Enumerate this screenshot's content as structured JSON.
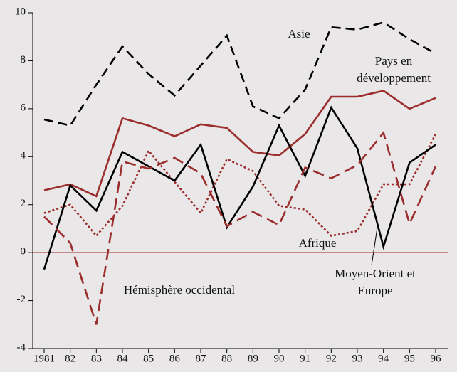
{
  "chart_data": {
    "type": "line",
    "categories": [
      "1981",
      "82",
      "83",
      "84",
      "85",
      "86",
      "87",
      "88",
      "89",
      "90",
      "91",
      "92",
      "93",
      "94",
      "95",
      "96"
    ],
    "series": [
      {
        "name": "Asie",
        "color": "#000000",
        "style": "dashed",
        "values": [
          5.55,
          5.3,
          7.0,
          8.6,
          7.45,
          6.55,
          7.8,
          9.05,
          6.1,
          5.6,
          6.8,
          9.4,
          9.3,
          9.6,
          8.9,
          8.3
        ]
      },
      {
        "name": "Pays en développement",
        "color": "#9b2d2d",
        "style": "solid",
        "values": [
          2.6,
          2.85,
          2.35,
          5.6,
          5.3,
          4.85,
          5.35,
          5.2,
          4.2,
          4.05,
          4.95,
          6.5,
          6.5,
          6.75,
          6.0,
          6.45
        ]
      },
      {
        "name": "Afrique",
        "color": "#9b2d2d",
        "style": "dotted",
        "values": [
          1.65,
          2.0,
          0.7,
          1.95,
          4.25,
          2.95,
          1.65,
          3.9,
          3.4,
          1.95,
          1.8,
          0.7,
          0.9,
          2.85,
          2.85,
          4.95
        ]
      },
      {
        "name": "Moyen-Orient et Europe",
        "color": "#000000",
        "style": "solid",
        "values": [
          -0.7,
          2.8,
          1.75,
          4.2,
          3.6,
          3.0,
          4.5,
          1.05,
          2.75,
          5.3,
          3.2,
          6.05,
          4.35,
          0.25,
          3.75,
          4.5
        ]
      },
      {
        "name": "Hémisphère occidental",
        "color": "#9b2d2d",
        "style": "long-dashed",
        "values": [
          1.5,
          0.4,
          -3.0,
          3.8,
          3.5,
          3.95,
          3.3,
          1.1,
          1.7,
          1.15,
          3.55,
          3.1,
          3.65,
          5.0,
          1.2,
          3.6
        ]
      }
    ],
    "ylim": [
      -4,
      10
    ],
    "yticks": [
      -4,
      -2,
      0,
      2,
      4,
      6,
      8,
      10
    ],
    "zero_line": true,
    "zero_line_color": "#9b2d2d"
  }
}
